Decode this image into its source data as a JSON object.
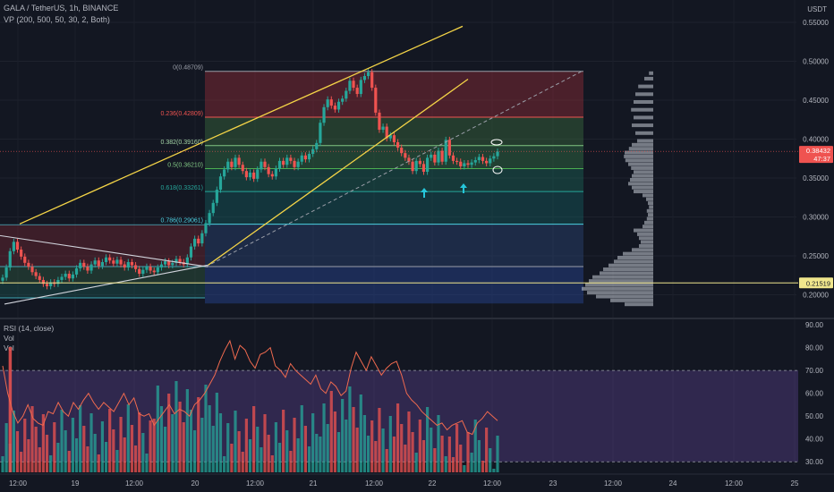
{
  "header": {
    "symbol_line": "GALA / TetherUS, 1h, BINANCE",
    "vp_line": "VP (200, 500, 50, 30, 2, Both)",
    "currency": "USDT"
  },
  "price_axis": {
    "ticks": [
      "0.55000",
      "0.50000",
      "0.45000",
      "0.40000",
      "0.35000",
      "0.30000",
      "0.25000",
      "0.20000"
    ],
    "last_price": "0.38432",
    "countdown": "47:37",
    "horizontal_level": "0.21519"
  },
  "fib_labels": [
    "0(0.48709)",
    "0.236(0.42809)",
    "0.382(0.39160)",
    "0.5(0.36210)",
    "0.618(0.33261)",
    "0.786(0.29061)"
  ],
  "rsi_panel": {
    "title": "RSI (14, close)",
    "vol_labels": [
      "Vol",
      "Vol"
    ],
    "ticks": [
      "90.00",
      "80.00",
      "70.00",
      "60.00",
      "50.00",
      "40.00",
      "30.00"
    ]
  },
  "time_axis": {
    "labels": [
      "12:00",
      "19",
      "12:00",
      "20",
      "12:00",
      "21",
      "12:00",
      "22",
      "12:00",
      "23",
      "12:00",
      "24",
      "12:00",
      "25"
    ]
  },
  "colors": {
    "up": "#26a69a",
    "down": "#ef5350",
    "rsi_line": "#f06a4f",
    "trend": "#f5d547",
    "level": "#f0e68c"
  },
  "chart_data": {
    "type": "candlestick",
    "series_close": [
      0.222,
      0.235,
      0.256,
      0.268,
      0.258,
      0.249,
      0.241,
      0.236,
      0.229,
      0.224,
      0.219,
      0.214,
      0.211,
      0.216,
      0.214,
      0.219,
      0.223,
      0.227,
      0.221,
      0.226,
      0.234,
      0.241,
      0.236,
      0.231,
      0.239,
      0.244,
      0.237,
      0.242,
      0.248,
      0.244,
      0.24,
      0.245,
      0.239,
      0.235,
      0.242,
      0.238,
      0.233,
      0.227,
      0.232,
      0.236,
      0.231,
      0.229,
      0.235,
      0.239,
      0.243,
      0.238,
      0.241,
      0.246,
      0.242,
      0.239,
      0.248,
      0.262,
      0.272,
      0.266,
      0.279,
      0.292,
      0.305,
      0.318,
      0.335,
      0.352,
      0.361,
      0.371,
      0.364,
      0.376,
      0.367,
      0.359,
      0.351,
      0.357,
      0.349,
      0.361,
      0.371,
      0.364,
      0.355,
      0.352,
      0.362,
      0.372,
      0.367,
      0.376,
      0.372,
      0.364,
      0.371,
      0.379,
      0.374,
      0.381,
      0.387,
      0.395,
      0.421,
      0.441,
      0.451,
      0.443,
      0.438,
      0.448,
      0.452,
      0.462,
      0.475,
      0.466,
      0.458,
      0.476,
      0.481,
      0.486,
      0.466,
      0.434,
      0.412,
      0.416,
      0.401,
      0.405,
      0.396,
      0.389,
      0.382,
      0.376,
      0.371,
      0.359,
      0.372,
      0.368,
      0.358,
      0.376,
      0.38,
      0.37,
      0.385,
      0.371,
      0.399,
      0.379,
      0.372,
      0.371,
      0.365,
      0.369,
      0.367,
      0.37,
      0.373,
      0.377,
      0.372,
      0.369,
      0.375,
      0.378,
      0.384
    ],
    "rsi_values": [
      72,
      60,
      52,
      47,
      50,
      55,
      49,
      47,
      46,
      52,
      51,
      56,
      52,
      50,
      56,
      53,
      57,
      60,
      56,
      53,
      56,
      54,
      52,
      56,
      60,
      55,
      58,
      51,
      50,
      51,
      46,
      49,
      52,
      55,
      51,
      53,
      52,
      50,
      55,
      57,
      60,
      64,
      68,
      74,
      79,
      83,
      75,
      81,
      79,
      74,
      71,
      77,
      78,
      80,
      72,
      70,
      67,
      73,
      70,
      68,
      66,
      64,
      68,
      62,
      60,
      65,
      63,
      59,
      61,
      71,
      78,
      74,
      70,
      76,
      72,
      68,
      71,
      73,
      74,
      68,
      60,
      57,
      55,
      52,
      50,
      48,
      46,
      47,
      44,
      46,
      47,
      48,
      43,
      42,
      47,
      49,
      52,
      50,
      48
    ],
    "ylim": [
      0.17,
      0.57
    ],
    "rsi_ylim": [
      25,
      92
    ]
  }
}
